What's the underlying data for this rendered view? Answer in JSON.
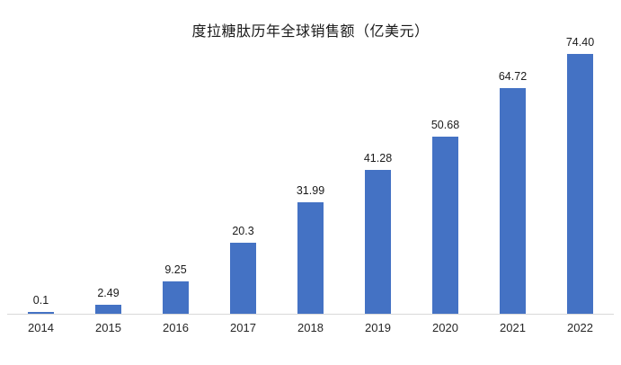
{
  "chart_data": {
    "type": "bar",
    "title": "度拉糖肽历年全球销售额（亿美元）",
    "categories": [
      "2014",
      "2015",
      "2016",
      "2017",
      "2018",
      "2019",
      "2020",
      "2021",
      "2022"
    ],
    "values": [
      0.1,
      2.49,
      9.25,
      20.3,
      31.99,
      41.28,
      50.68,
      64.72,
      74.4
    ],
    "value_labels": [
      "0.1",
      "2.49",
      "9.25",
      "20.3",
      "31.99",
      "41.28",
      "50.68",
      "64.72",
      "74.40"
    ],
    "series_name": "全球销售额",
    "xlabel": "",
    "ylabel": "",
    "ylim": [
      0,
      74.4
    ],
    "grid": false,
    "legend_position": "none",
    "data_labels": "outside-end",
    "bar_color": "#4472C4",
    "axis_line_color": "#d9d9d9",
    "label_color": "#1a1a1a"
  }
}
